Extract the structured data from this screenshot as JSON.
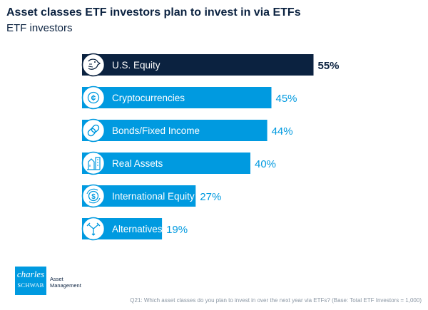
{
  "title": "Asset classes ETF investors plan to invest in via ETFs",
  "subtitle": "ETF investors",
  "chart_data": {
    "type": "bar",
    "orientation": "horizontal",
    "categories": [
      "U.S. Equity",
      "Cryptocurrencies",
      "Bonds/Fixed Income",
      "Real Assets",
      "International Equity",
      "Alternatives"
    ],
    "values": [
      55,
      45,
      44,
      40,
      27,
      19
    ],
    "value_labels": [
      "55%",
      "45%",
      "44%",
      "40%",
      "27%",
      "19%"
    ],
    "icons": [
      "eagle-icon",
      "coin-icon",
      "chain-link-icon",
      "real-assets-icon",
      "dollar-globe-icon",
      "branching-arrows-icon"
    ],
    "colors": {
      "highlight": "#0b2240",
      "bar": "#009ae0",
      "label_highlight": "#0b2240",
      "label": "#009ae0"
    },
    "grid": false,
    "legend": "none"
  },
  "logo": {
    "line1": "charles",
    "line2": "SCHWAB"
  },
  "brand": {
    "line1": "Asset",
    "line2": "Management"
  },
  "footnote": "Q21: Which asset classes do you plan to invest in over the next year via ETFs? (Base: Total ETF Investors = 1,000)"
}
